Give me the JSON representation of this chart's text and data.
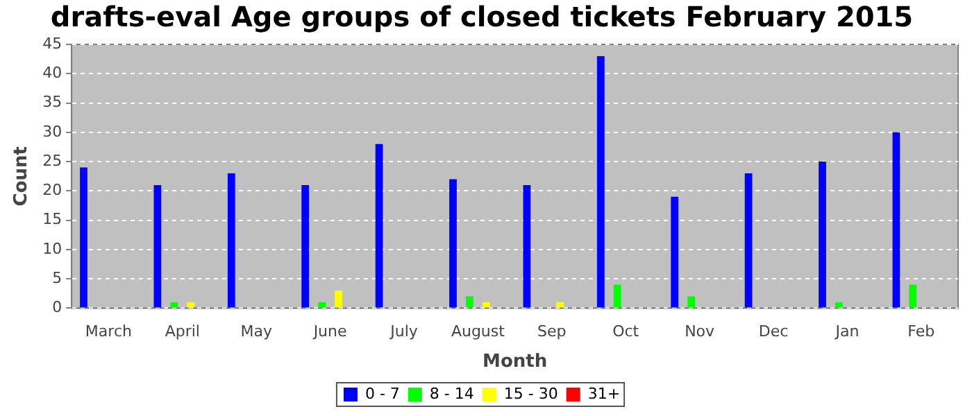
{
  "chart_data": {
    "type": "bar",
    "title": "drafts-eval Age groups of closed tickets February 2015",
    "xlabel": "Month",
    "ylabel": "Count",
    "categories": [
      "March",
      "April",
      "May",
      "June",
      "July",
      "August",
      "Sep",
      "Oct",
      "Nov",
      "Dec",
      "Jan",
      "Feb"
    ],
    "series": [
      {
        "name": "0 - 7",
        "color": "#0000ff",
        "values": [
          24,
          21,
          23,
          21,
          28,
          22,
          21,
          43,
          19,
          23,
          25,
          30
        ]
      },
      {
        "name": "8 - 14",
        "color": "#00ff00",
        "values": [
          0,
          1,
          0,
          1,
          0,
          2,
          0,
          4,
          2,
          0,
          1,
          4
        ]
      },
      {
        "name": "15 - 30",
        "color": "#ffff00",
        "values": [
          0,
          1,
          0,
          3,
          0,
          1,
          1,
          0,
          0,
          0,
          0,
          0
        ]
      },
      {
        "name": "31+",
        "color": "#ff0000",
        "values": [
          0,
          0,
          0,
          0,
          0,
          0,
          0,
          0,
          0,
          0,
          0,
          0
        ]
      }
    ],
    "ylim": [
      0,
      45
    ],
    "yticks": [
      0,
      5,
      10,
      15,
      20,
      25,
      30,
      35,
      40,
      45
    ],
    "grid": "y",
    "legend": "bottom"
  }
}
